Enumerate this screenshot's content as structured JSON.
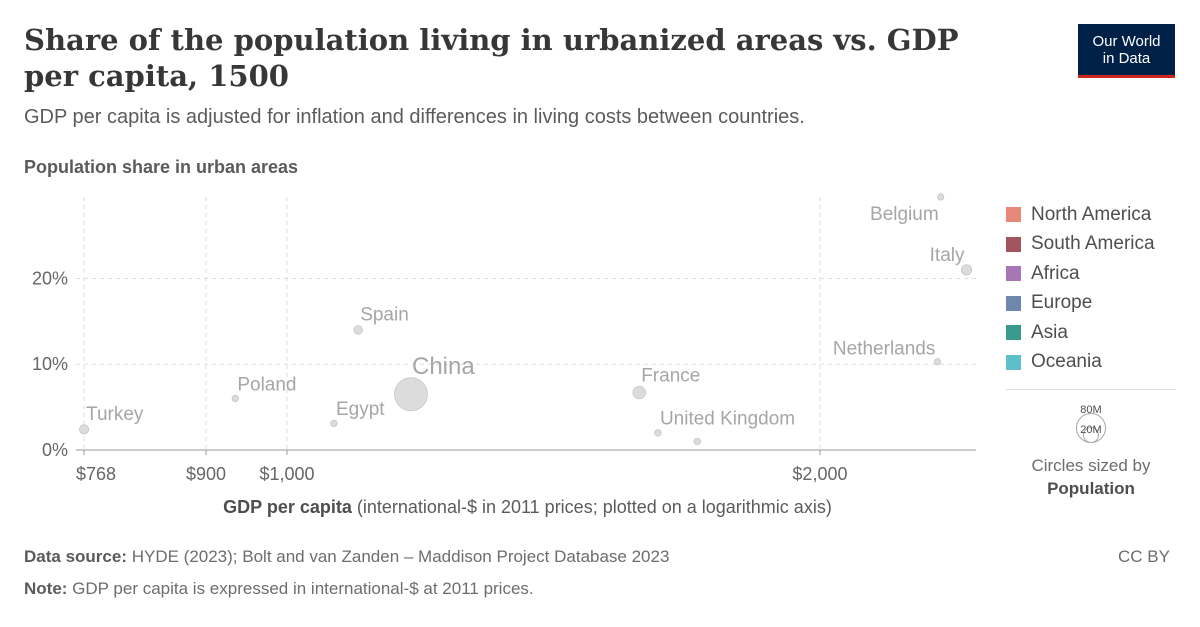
{
  "header": {
    "title": "Share of the population living in urbanized areas vs. GDP per capita, 1500",
    "subtitle": "GDP per capita is adjusted for inflation and differences in living costs between countries.",
    "logo_line1": "Our World",
    "logo_line2": "in Data"
  },
  "chart_data": {
    "type": "scatter",
    "title": "Share of the population living in urbanized areas vs. GDP per capita, 1500",
    "ylabel": "Population share in urban areas",
    "xlabel_bold": "GDP per capita",
    "xlabel_rest": " (international-$ in 2011 prices; plotted on a logarithmic axis)",
    "x_scale": "log",
    "xlim": [
      760,
      2450
    ],
    "ylim": [
      0,
      29.5
    ],
    "x_ticks": [
      {
        "value": 768,
        "label": "$768"
      },
      {
        "value": 900,
        "label": "$900"
      },
      {
        "value": 1000,
        "label": "$1,000"
      },
      {
        "value": 2000,
        "label": "$2,000"
      }
    ],
    "y_ticks": [
      {
        "value": 0,
        "label": "0%"
      },
      {
        "value": 10,
        "label": "10%"
      },
      {
        "value": 20,
        "label": "20%"
      }
    ],
    "grid": true,
    "point_color": "#d6d6d6",
    "points": [
      {
        "label": "Turkey",
        "x": 768,
        "y": 2.4,
        "population": 8000000,
        "label_pos": "right-above"
      },
      {
        "label": "Poland",
        "x": 935,
        "y": 6.0,
        "population": 4000000,
        "label_pos": "right-above"
      },
      {
        "label": "Egypt",
        "x": 1063,
        "y": 3.1,
        "population": 4000000,
        "label_pos": "right-above"
      },
      {
        "label": "Spain",
        "x": 1097,
        "y": 14.0,
        "population": 7000000,
        "label_pos": "right-above"
      },
      {
        "label": "China",
        "x": 1175,
        "y": 6.5,
        "population": 103000000,
        "label_pos": "right-above-big"
      },
      {
        "label": "France",
        "x": 1581,
        "y": 6.7,
        "population": 15000000,
        "label_pos": "right-above"
      },
      {
        "label": "United Kingdom",
        "x": 1620,
        "y": 2.0,
        "population": 4000000,
        "label_pos": "right-above"
      },
      {
        "label": "Netherlands",
        "x": 2330,
        "y": 10.3,
        "population": 1000000,
        "label_pos": "left-above"
      },
      {
        "label": "Belgium",
        "x": 2340,
        "y": 29.5,
        "population": 1000000,
        "label_pos": "left-below"
      },
      {
        "label": "Italy",
        "x": 2420,
        "y": 21.0,
        "population": 10000000,
        "label_pos": "left-above"
      },
      {
        "label": "",
        "x": 1705,
        "y": 1.0,
        "population": 1000000,
        "label_pos": "none"
      }
    ],
    "legend": {
      "placement": "right",
      "entries": [
        {
          "name": "North America",
          "color": "#e6877a"
        },
        {
          "name": "South America",
          "color": "#a2555f"
        },
        {
          "name": "Africa",
          "color": "#a777b5"
        },
        {
          "name": "Europe",
          "color": "#6f86ad"
        },
        {
          "name": "Asia",
          "color": "#39998e"
        },
        {
          "name": "Oceania",
          "color": "#5dbfcb"
        }
      ]
    },
    "size_legend": {
      "large_label": "80M",
      "small_label": "20M",
      "note_line1": "Circles sized by",
      "note_line2": "Population"
    }
  },
  "footer": {
    "source_label": "Data source:",
    "source_text": " HYDE (2023); Bolt and van Zanden – Maddison Project Database 2023",
    "note_label": "Note:",
    "note_text": " GDP per capita is expressed in international-$ at 2011 prices.",
    "license": "CC BY"
  }
}
